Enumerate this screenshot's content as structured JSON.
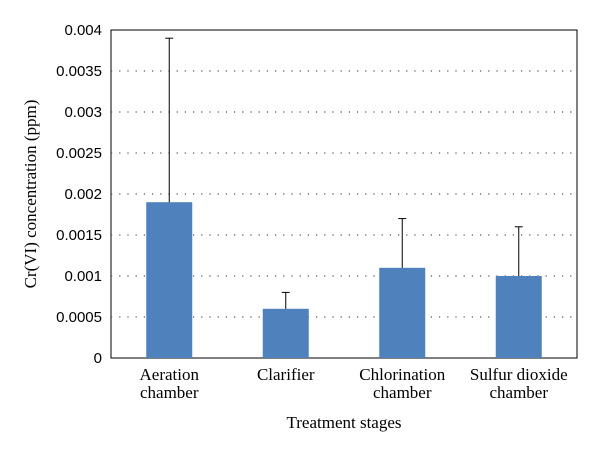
{
  "chart_data": {
    "type": "bar",
    "categories": [
      [
        "Aeration",
        "chamber"
      ],
      [
        "Clarifier"
      ],
      [
        "Chlorination",
        "chamber"
      ],
      [
        "Sulfur dioxide",
        "chamber"
      ]
    ],
    "values": [
      0.0019,
      0.0006,
      0.0011,
      0.001
    ],
    "error_upper": [
      0.0039,
      0.0008,
      0.0017,
      0.0016
    ],
    "xlabel": "Treatment stages",
    "ylabel": "Cr(VI) concentration (ppm)",
    "ylim": [
      0,
      0.004
    ],
    "yticks": [
      0,
      0.0005,
      0.001,
      0.0015,
      0.002,
      0.0025,
      0.003,
      0.0035,
      0.004
    ],
    "ytick_labels": [
      "0",
      "0.0005",
      "0.001",
      "0.0015",
      "0.002",
      "0.0025",
      "0.003",
      "0.0035",
      "0.004"
    ],
    "grid": "horizontal dotted",
    "legend": "none",
    "bar_color": "#4f81bd"
  }
}
